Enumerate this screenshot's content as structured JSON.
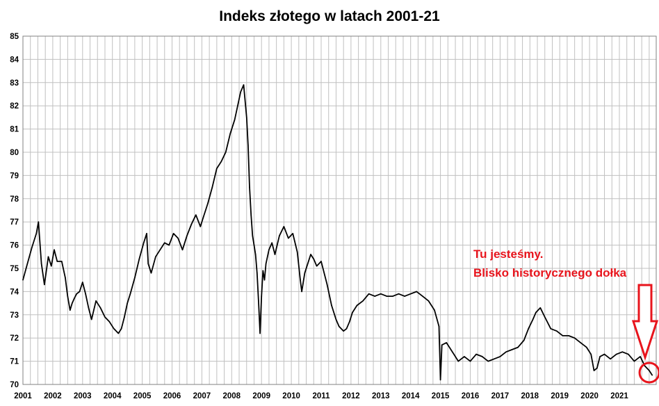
{
  "colors": {
    "line": "#000000",
    "grid": "#c0c0c0",
    "annotation": "#e8141c"
  },
  "chart_data": {
    "type": "line",
    "title": "Indeks złotego w latach 2001-21",
    "xlabel": "",
    "ylabel": "",
    "grid": true,
    "legend": "none",
    "xlim": [
      2001,
      2022.2
    ],
    "ylim": [
      70,
      85
    ],
    "x_tick_labels": [
      "2001",
      "2002",
      "2003",
      "2004",
      "2005",
      "2006",
      "2007",
      "2008",
      "2009",
      "2010",
      "2011",
      "2012",
      "2013",
      "2014",
      "2015",
      "2016",
      "2017",
      "2018",
      "2019",
      "2020",
      "2021"
    ],
    "y_tick_labels": [
      "70",
      "71",
      "72",
      "73",
      "74",
      "75",
      "76",
      "77",
      "78",
      "79",
      "80",
      "81",
      "82",
      "83",
      "84",
      "85"
    ],
    "series": [
      {
        "x": [
          2001.0,
          2001.15,
          2001.3,
          2001.45,
          2001.52,
          2001.62,
          2001.72,
          2001.85,
          2001.95,
          2002.05,
          2002.15,
          2002.3,
          2002.42,
          2002.5,
          2002.58,
          2002.65,
          2002.72,
          2002.8,
          2002.9,
          2003.0,
          2003.1,
          2003.2,
          2003.3,
          2003.45,
          2003.6,
          2003.75,
          2003.9,
          2004.05,
          2004.2,
          2004.3,
          2004.4,
          2004.5,
          2004.6,
          2004.75,
          2004.9,
          2005.05,
          2005.15,
          2005.2,
          2005.3,
          2005.45,
          2005.6,
          2005.75,
          2005.9,
          2006.05,
          2006.2,
          2006.35,
          2006.5,
          2006.65,
          2006.8,
          2006.95,
          2007.05,
          2007.2,
          2007.35,
          2007.5,
          2007.65,
          2007.8,
          2007.95,
          2008.1,
          2008.2,
          2008.3,
          2008.4,
          2008.5,
          2008.55,
          2008.6,
          2008.65,
          2008.7,
          2008.75,
          2008.8,
          2008.85,
          2008.9,
          2008.95,
          2009.0,
          2009.05,
          2009.1,
          2009.15,
          2009.25,
          2009.35,
          2009.45,
          2009.6,
          2009.75,
          2009.9,
          2010.05,
          2010.2,
          2010.3,
          2010.35,
          2010.45,
          2010.55,
          2010.65,
          2010.75,
          2010.85,
          2011.0,
          2011.2,
          2011.35,
          2011.5,
          2011.6,
          2011.75,
          2011.85,
          2011.95,
          2012.05,
          2012.2,
          2012.4,
          2012.6,
          2012.8,
          2013.0,
          2013.2,
          2013.4,
          2013.6,
          2013.8,
          2014.0,
          2014.2,
          2014.4,
          2014.6,
          2014.8,
          2014.95,
          2015.0,
          2015.05,
          2015.2,
          2015.4,
          2015.6,
          2015.8,
          2016.0,
          2016.2,
          2016.4,
          2016.6,
          2016.8,
          2017.0,
          2017.2,
          2017.4,
          2017.6,
          2017.8,
          2017.95,
          2018.1,
          2018.2,
          2018.35,
          2018.5,
          2018.7,
          2018.9,
          2019.1,
          2019.3,
          2019.5,
          2019.7,
          2019.9,
          2020.05,
          2020.15,
          2020.25,
          2020.35,
          2020.5,
          2020.7,
          2020.9,
          2021.1,
          2021.3,
          2021.5,
          2021.7,
          2021.85,
          2022.0,
          2022.1
        ],
        "y": [
          74.5,
          75.2,
          75.9,
          76.5,
          77.0,
          75.2,
          74.3,
          75.5,
          75.1,
          75.8,
          75.3,
          75.3,
          74.6,
          73.8,
          73.2,
          73.5,
          73.7,
          73.9,
          74.0,
          74.4,
          73.9,
          73.3,
          72.8,
          73.6,
          73.3,
          72.9,
          72.7,
          72.4,
          72.2,
          72.4,
          72.9,
          73.5,
          73.9,
          74.6,
          75.4,
          76.1,
          76.5,
          75.2,
          74.8,
          75.5,
          75.8,
          76.1,
          76.0,
          76.5,
          76.3,
          75.8,
          76.4,
          76.9,
          77.3,
          76.8,
          77.2,
          77.8,
          78.5,
          79.3,
          79.6,
          80.0,
          80.8,
          81.4,
          82.0,
          82.6,
          82.9,
          81.5,
          80.3,
          78.5,
          77.3,
          76.4,
          76.0,
          75.6,
          74.8,
          73.6,
          72.2,
          73.8,
          74.9,
          74.5,
          75.2,
          75.8,
          76.1,
          75.6,
          76.4,
          76.8,
          76.3,
          76.5,
          75.7,
          74.5,
          74.0,
          74.8,
          75.2,
          75.6,
          75.4,
          75.1,
          75.3,
          74.3,
          73.4,
          72.8,
          72.5,
          72.3,
          72.4,
          72.7,
          73.1,
          73.4,
          73.6,
          73.9,
          73.8,
          73.9,
          73.8,
          73.8,
          73.9,
          73.8,
          73.9,
          74.0,
          73.8,
          73.6,
          73.2,
          72.5,
          70.2,
          71.7,
          71.8,
          71.4,
          71.0,
          71.2,
          71.0,
          71.3,
          71.2,
          71.0,
          71.1,
          71.2,
          71.4,
          71.5,
          71.6,
          71.9,
          72.4,
          72.8,
          73.1,
          73.3,
          72.9,
          72.4,
          72.3,
          72.1,
          72.1,
          72.0,
          71.8,
          71.6,
          71.3,
          70.6,
          70.7,
          71.2,
          71.3,
          71.1,
          71.3,
          71.4,
          71.3,
          71.0,
          71.2,
          70.8,
          70.6,
          70.4
        ]
      }
    ],
    "annotations": [
      {
        "lines": [
          "Tu jesteśmy.",
          "Blisko historycznego dołka"
        ],
        "x": 2021.55,
        "y": 75.5,
        "shape": "arrow-down",
        "target": [
          2022.05,
          70.45
        ]
      }
    ]
  }
}
